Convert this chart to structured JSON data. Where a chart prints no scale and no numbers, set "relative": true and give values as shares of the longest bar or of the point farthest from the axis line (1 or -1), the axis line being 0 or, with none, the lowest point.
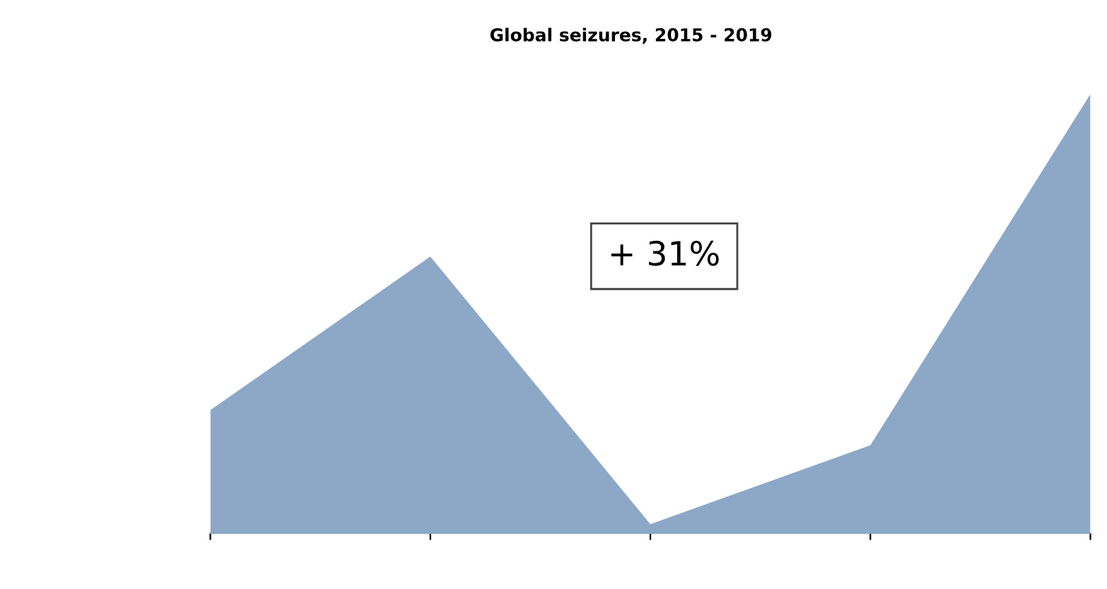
{
  "chart_data": {
    "type": "area",
    "title": "Global seizures, 2015 - 2019",
    "relative": true,
    "categories": [
      null,
      null,
      null,
      null,
      null
    ],
    "series": [
      {
        "color": "#8da7c7",
        "values": [
          0.28,
          0.63,
          0.02,
          0.2,
          1
        ]
      }
    ],
    "annotations": [
      "+ 31%"
    ],
    "grid": false,
    "legend": false
  }
}
